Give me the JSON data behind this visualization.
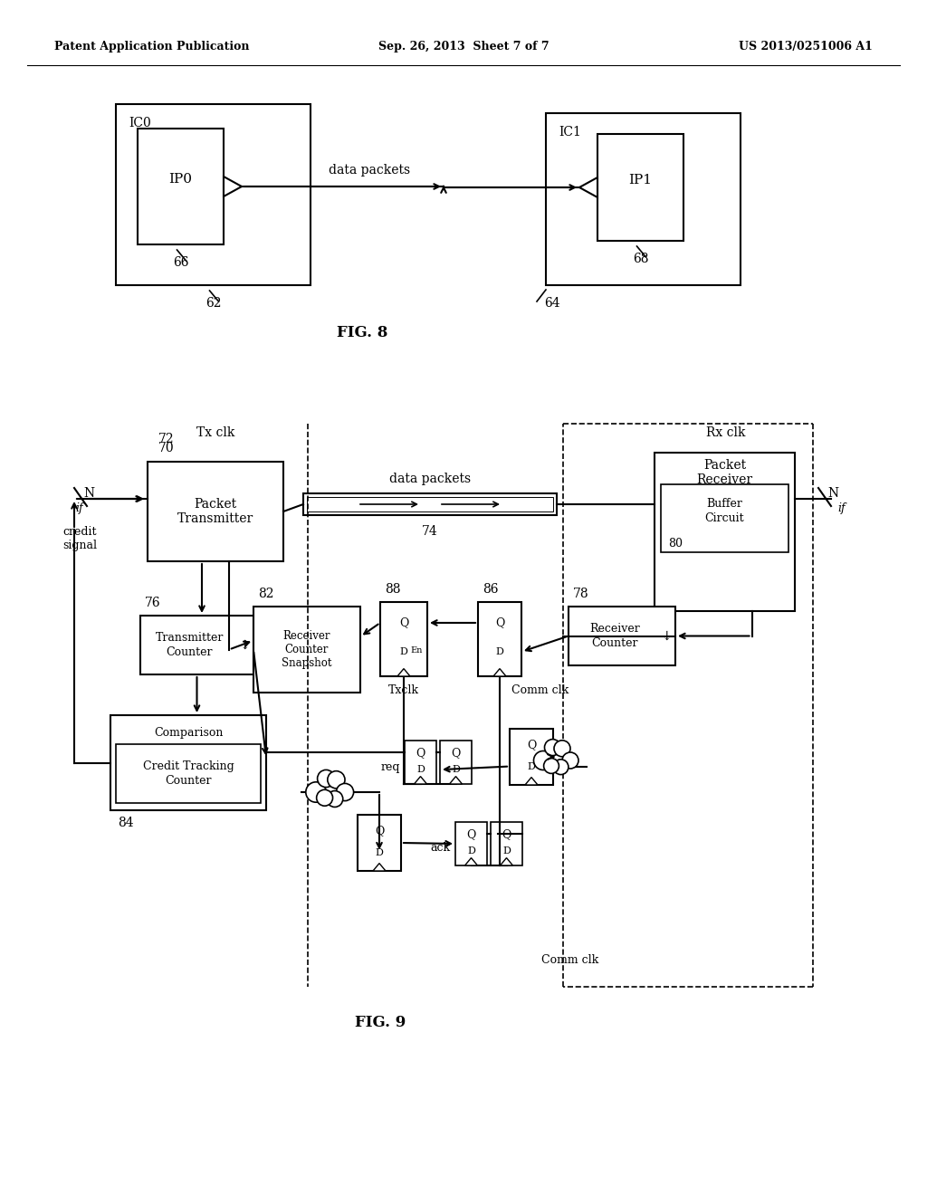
{
  "bg_color": "#ffffff",
  "lc": "#000000",
  "header_left": "Patent Application Publication",
  "header_center": "Sep. 26, 2013  Sheet 7 of 7",
  "header_right": "US 2013/0251006 A1",
  "fig8_label": "FIG. 8",
  "fig9_label": "FIG. 9",
  "IC0": "IC0",
  "IC1": "IC1",
  "IP0": "IP0",
  "IP1": "IP1",
  "n66": "66",
  "n68": "68",
  "n62": "62",
  "n64": "64",
  "n70": "70",
  "n72": "72",
  "n74": "74",
  "n76": "76",
  "n78": "78",
  "n80": "80",
  "n82": "82",
  "n84": "84",
  "n86": "86",
  "n88": "88",
  "data_packets": "data packets",
  "tx_clk": "Tx clk",
  "rx_clk": "Rx clk",
  "pkt_tx": "Packet\nTransmitter",
  "pkt_rx": "Packet\nReceiver",
  "buf_ckt": "Buffer\nCircuit",
  "tx_ctr": "Transmitter\nCounter",
  "rx_ctr": "Receiver\nCounter",
  "rx_snap": "Receiver\nCounter\nSnapshot",
  "cmp_ctr": "Comparison\nCredit Tracking\nCounter",
  "credit_sig": "credit\nsignal",
  "txclk": "Txclk",
  "comm_clk": "Comm clk",
  "req_lbl": "req",
  "ack_lbl": "ack",
  "N": "N",
  "if_lbl": "if"
}
